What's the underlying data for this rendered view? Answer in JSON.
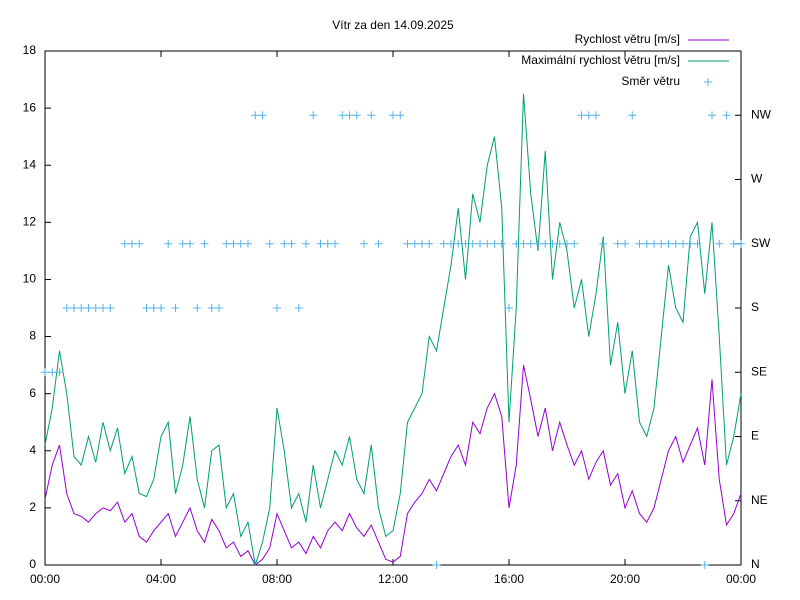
{
  "chart_data": {
    "type": "line",
    "title": "Vítr za den 14.09.2025",
    "x": [
      0,
      0.25,
      0.5,
      0.75,
      1,
      1.25,
      1.5,
      1.75,
      2,
      2.25,
      2.5,
      2.75,
      3,
      3.25,
      3.5,
      3.75,
      4,
      4.25,
      4.5,
      4.75,
      5,
      5.25,
      5.5,
      5.75,
      6,
      6.25,
      6.5,
      6.75,
      7,
      7.25,
      7.5,
      7.75,
      8,
      8.25,
      8.5,
      8.75,
      9,
      9.25,
      9.5,
      9.75,
      10,
      10.25,
      10.5,
      10.75,
      11,
      11.25,
      11.5,
      11.75,
      12,
      12.25,
      12.5,
      12.75,
      13,
      13.25,
      13.5,
      13.75,
      14,
      14.25,
      14.5,
      14.75,
      15,
      15.25,
      15.5,
      15.75,
      16,
      16.25,
      16.5,
      16.75,
      17,
      17.25,
      17.5,
      17.75,
      18,
      18.25,
      18.5,
      18.75,
      19,
      19.25,
      19.5,
      19.75,
      20,
      20.25,
      20.5,
      20.75,
      21,
      21.25,
      21.5,
      21.75,
      22,
      22.25,
      22.5,
      22.75,
      23,
      23.25,
      23.5,
      23.75,
      24
    ],
    "series": [
      {
        "name": "Rychlost větru [m/s]",
        "color": "#9400d3",
        "style": "line",
        "values": [
          2.3,
          3.5,
          4.2,
          2.5,
          1.8,
          1.7,
          1.5,
          1.8,
          2.0,
          1.9,
          2.2,
          1.5,
          1.8,
          1.0,
          0.8,
          1.2,
          1.5,
          1.8,
          1.0,
          1.5,
          2.0,
          1.2,
          0.8,
          1.6,
          1.2,
          0.6,
          0.8,
          0.3,
          0.5,
          0.0,
          0.2,
          0.6,
          1.8,
          1.2,
          0.6,
          0.8,
          0.4,
          1.0,
          0.6,
          1.2,
          1.5,
          1.2,
          1.8,
          1.3,
          1.0,
          1.4,
          0.8,
          0.2,
          0.1,
          0.3,
          1.8,
          2.2,
          2.5,
          3.0,
          2.6,
          3.2,
          3.8,
          4.2,
          3.5,
          5.0,
          4.6,
          5.5,
          6.0,
          5.2,
          2.0,
          3.5,
          7.0,
          5.8,
          4.5,
          5.5,
          4.0,
          5.0,
          4.2,
          3.5,
          4.0,
          3.0,
          3.6,
          4.0,
          2.8,
          3.2,
          2.0,
          2.6,
          1.8,
          1.5,
          2.0,
          3.0,
          4.0,
          4.5,
          3.6,
          4.2,
          4.8,
          3.5,
          6.5,
          3.0,
          1.4,
          1.8,
          2.5
        ]
      },
      {
        "name": "Maximální rychlost větru [m/s]",
        "color": "#009e73",
        "style": "line",
        "values": [
          4.2,
          5.5,
          7.5,
          6.0,
          3.8,
          3.5,
          4.5,
          3.6,
          5.0,
          4.0,
          4.8,
          3.2,
          3.8,
          2.5,
          2.4,
          3.0,
          4.5,
          5.0,
          2.5,
          3.5,
          5.2,
          3.0,
          2.0,
          4.0,
          4.2,
          2.0,
          2.5,
          1.0,
          1.5,
          0.0,
          0.8,
          2.0,
          5.5,
          4.0,
          2.0,
          2.5,
          1.5,
          3.5,
          2.0,
          3.0,
          4.0,
          3.5,
          4.5,
          3.0,
          2.5,
          4.2,
          2.0,
          1.0,
          1.2,
          2.5,
          5.0,
          5.5,
          6.0,
          8.0,
          7.5,
          9.0,
          10.5,
          12.5,
          10.0,
          13.0,
          12.0,
          14.0,
          15.0,
          12.5,
          5.0,
          9.0,
          16.5,
          13.0,
          11.0,
          14.5,
          10.0,
          12.0,
          11.0,
          9.0,
          10.0,
          8.0,
          9.5,
          11.5,
          7.0,
          8.5,
          6.0,
          7.5,
          5.0,
          4.5,
          5.5,
          8.0,
          10.5,
          9.0,
          8.5,
          11.5,
          12.0,
          9.5,
          12.0,
          8.0,
          3.5,
          4.5,
          6.0
        ]
      },
      {
        "name": "Směr větru",
        "color": "#56b4e9",
        "style": "points",
        "axis": "y2",
        "values": [
          135,
          135,
          135,
          180,
          180,
          180,
          180,
          180,
          180,
          180,
          null,
          225,
          225,
          225,
          180,
          180,
          180,
          225,
          180,
          225,
          225,
          180,
          225,
          180,
          180,
          225,
          225,
          225,
          225,
          315,
          315,
          225,
          180,
          225,
          225,
          180,
          225,
          315,
          225,
          225,
          225,
          315,
          315,
          315,
          225,
          315,
          225,
          null,
          315,
          315,
          225,
          225,
          225,
          225,
          0,
          225,
          225,
          225,
          225,
          225,
          225,
          225,
          225,
          225,
          180,
          225,
          225,
          225,
          225,
          225,
          225,
          225,
          225,
          225,
          315,
          315,
          315,
          225,
          null,
          225,
          225,
          315,
          225,
          225,
          225,
          225,
          225,
          225,
          225,
          225,
          225,
          0,
          315,
          225,
          315,
          225,
          225
        ]
      }
    ],
    "xlim": [
      0,
      24
    ],
    "xticks": [
      {
        "value": 0,
        "label": "00:00"
      },
      {
        "value": 4,
        "label": "04:00"
      },
      {
        "value": 8,
        "label": "08:00"
      },
      {
        "value": 12,
        "label": "12:00"
      },
      {
        "value": 16,
        "label": "16:00"
      },
      {
        "value": 20,
        "label": "20:00"
      },
      {
        "value": 24,
        "label": "00:00"
      }
    ],
    "ylim": [
      0,
      18
    ],
    "yticks": [
      0,
      2,
      4,
      6,
      8,
      10,
      12,
      14,
      16,
      18
    ],
    "y2lim": [
      0,
      360
    ],
    "y2ticks": [
      {
        "value": 0,
        "label": "N"
      },
      {
        "value": 45,
        "label": "NE"
      },
      {
        "value": 90,
        "label": "E"
      },
      {
        "value": 135,
        "label": "SE"
      },
      {
        "value": 180,
        "label": "S"
      },
      {
        "value": 225,
        "label": "SW"
      },
      {
        "value": 270,
        "label": "W"
      },
      {
        "value": 315,
        "label": "NW"
      }
    ],
    "grid": false,
    "legend": "top-right"
  }
}
